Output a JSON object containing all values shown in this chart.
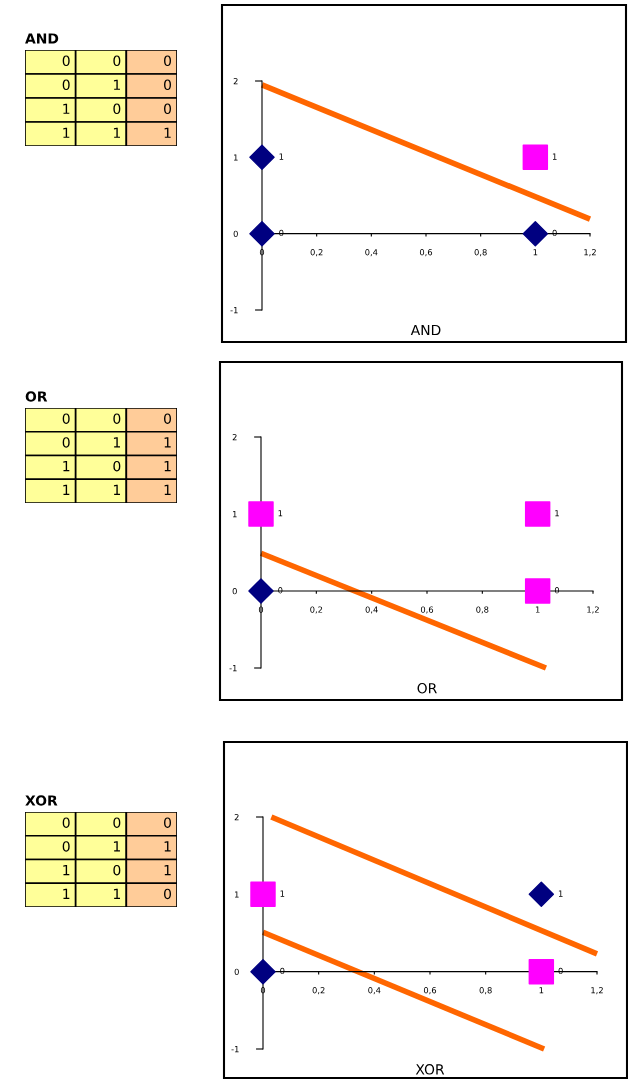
{
  "chart_data": [
    {
      "type": "other",
      "title": "AND",
      "colors": [
        "#ffff99",
        "#ffff99",
        "#ffcc99"
      ],
      "annotations": [
        "0",
        "0",
        "0",
        "0",
        "1",
        "0",
        "1",
        "0",
        "0",
        "1",
        "1",
        "1"
      ]
    },
    {
      "type": "scatter",
      "title": "AND",
      "xlim": [
        0,
        1.2
      ],
      "ylim": [
        -1,
        2
      ],
      "xticks": [
        {
          "value": 0,
          "label": "0"
        },
        {
          "value": 0.2,
          "label": "0,2"
        },
        {
          "value": 0.4,
          "label": "0,4"
        },
        {
          "value": 0.6,
          "label": "0,6"
        },
        {
          "value": 0.8,
          "label": "0,8"
        },
        {
          "value": 1,
          "label": "1"
        },
        {
          "value": 1.2,
          "label": "1,2"
        }
      ],
      "yticks": [
        -1,
        0,
        1,
        2
      ],
      "grid": false,
      "legend": false,
      "series": [
        {
          "color": "#000080",
          "marker": "diamond",
          "x": [
            0,
            0,
            1
          ],
          "values": [
            0,
            1,
            0
          ],
          "value_labels": [
            "0",
            "1",
            "0"
          ]
        },
        {
          "color": "#ff00ff",
          "marker": "square",
          "x": [
            1
          ],
          "values": [
            1
          ],
          "value_labels": [
            "1"
          ]
        },
        {
          "type": "line",
          "color": "#ff6600",
          "x": [
            0,
            1.2
          ],
          "values": [
            1.95,
            0.19
          ]
        }
      ]
    },
    {
      "type": "other",
      "title": "OR",
      "colors": [
        "#ffff99",
        "#ffff99",
        "#ffcc99"
      ],
      "annotations": [
        "0",
        "0",
        "0",
        "0",
        "1",
        "1",
        "1",
        "0",
        "1",
        "1",
        "1",
        "1"
      ]
    },
    {
      "type": "scatter",
      "title": "OR",
      "xlim": [
        0,
        1.2
      ],
      "ylim": [
        -1,
        2
      ],
      "xticks": [
        {
          "value": 0,
          "label": "0"
        },
        {
          "value": 0.2,
          "label": "0,2"
        },
        {
          "value": 0.4,
          "label": "0,4"
        },
        {
          "value": 0.6,
          "label": "0,6"
        },
        {
          "value": 0.8,
          "label": "0,8"
        },
        {
          "value": 1,
          "label": "1"
        },
        {
          "value": 1.2,
          "label": "1,2"
        }
      ],
      "yticks": [
        -1,
        0,
        1,
        2
      ],
      "grid": false,
      "legend": false,
      "series": [
        {
          "color": "#000080",
          "marker": "diamond",
          "x": [
            0
          ],
          "values": [
            0
          ],
          "value_labels": [
            "0"
          ]
        },
        {
          "color": "#ff00ff",
          "marker": "square",
          "x": [
            0,
            1,
            1
          ],
          "values": [
            1,
            1,
            0
          ],
          "value_labels": [
            "1",
            "1",
            "0"
          ]
        },
        {
          "type": "line",
          "color": "#ff6600",
          "x": [
            0,
            1.03
          ],
          "values": [
            0.49,
            -1
          ]
        }
      ]
    },
    {
      "type": "other",
      "title": "XOR",
      "colors": [
        "#ffff99",
        "#ffff99",
        "#ffcc99"
      ],
      "annotations": [
        "0",
        "0",
        "0",
        "0",
        "1",
        "1",
        "1",
        "0",
        "1",
        "1",
        "1",
        "0"
      ]
    },
    {
      "type": "scatter",
      "title": "XOR",
      "xlim": [
        0,
        1.2
      ],
      "ylim": [
        -1,
        2
      ],
      "xticks": [
        {
          "value": 0,
          "label": "0"
        },
        {
          "value": 0.2,
          "label": "0,2"
        },
        {
          "value": 0.4,
          "label": "0,4"
        },
        {
          "value": 0.6,
          "label": "0,6"
        },
        {
          "value": 0.8,
          "label": "0,8"
        },
        {
          "value": 1,
          "label": "1"
        },
        {
          "value": 1.2,
          "label": "1,2"
        }
      ],
      "yticks": [
        -1,
        0,
        1,
        2
      ],
      "grid": false,
      "legend": false,
      "series": [
        {
          "color": "#000080",
          "marker": "diamond",
          "x": [
            0,
            1
          ],
          "values": [
            0,
            1
          ],
          "value_labels": [
            "0",
            "1"
          ]
        },
        {
          "color": "#ff00ff",
          "marker": "square",
          "x": [
            0,
            1
          ],
          "values": [
            1,
            0
          ],
          "value_labels": [
            "1",
            "0"
          ]
        },
        {
          "type": "line",
          "color": "#ff6600",
          "x": [
            0.03,
            1.2
          ],
          "values": [
            2,
            0.23
          ]
        },
        {
          "type": "line",
          "color": "#ff6600",
          "x": [
            0,
            1.01
          ],
          "values": [
            0.51,
            -1
          ]
        }
      ]
    }
  ]
}
